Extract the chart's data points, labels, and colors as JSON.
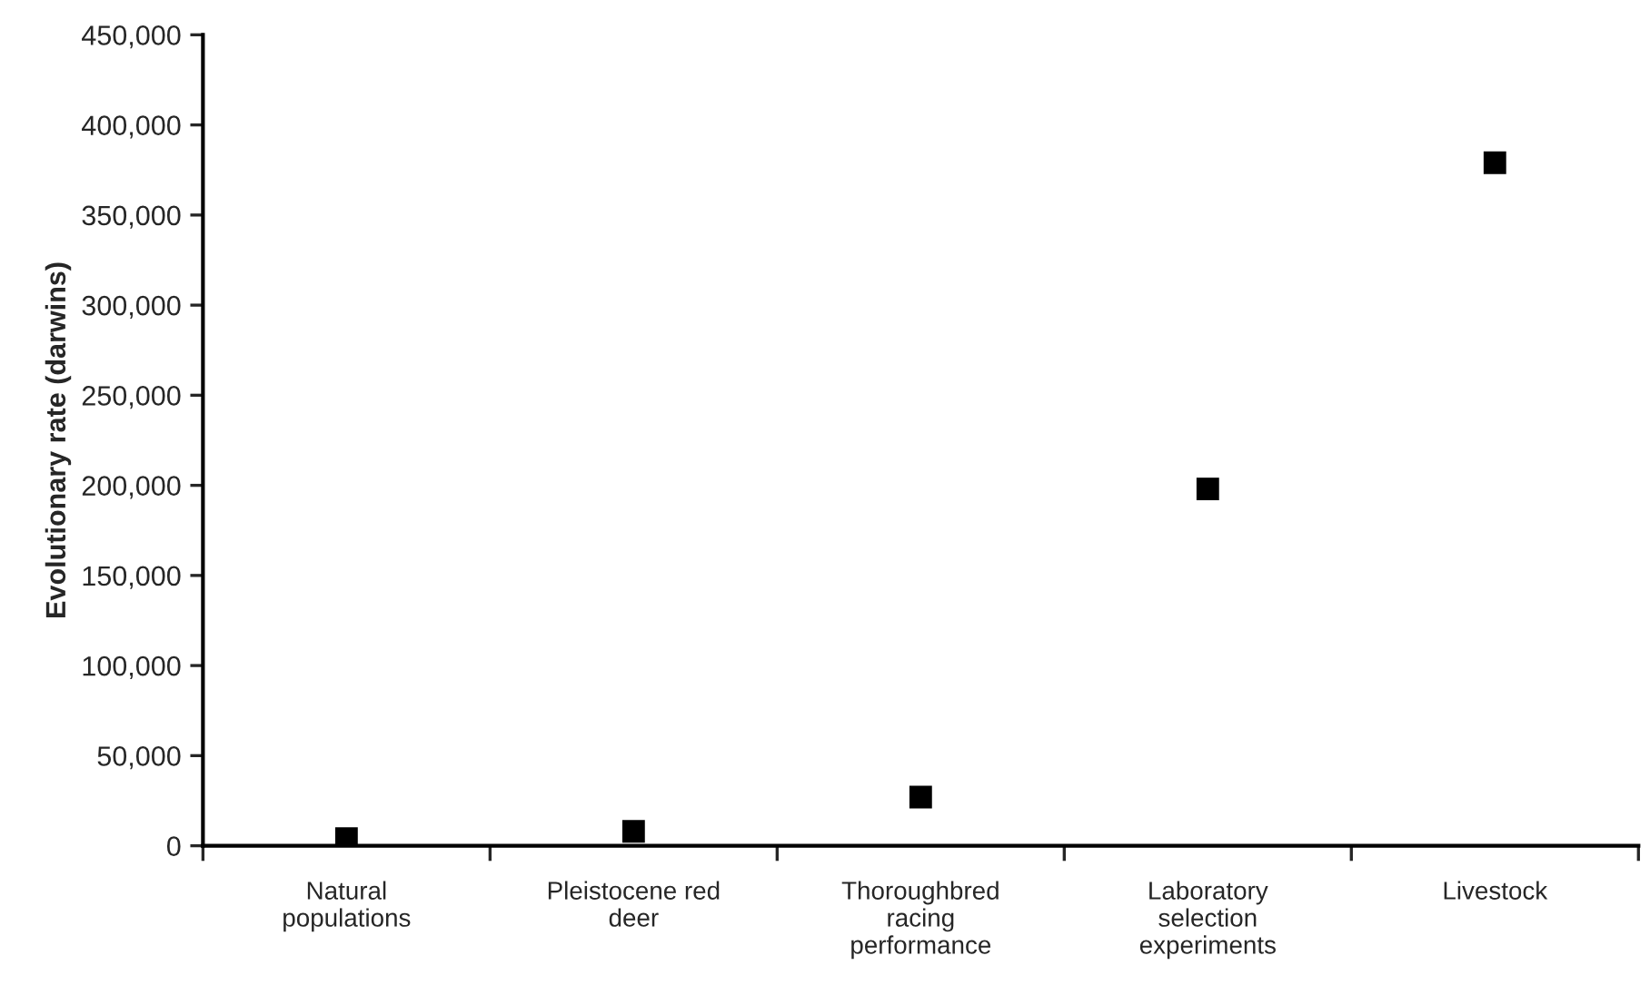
{
  "chart_data": {
    "type": "scatter",
    "ylabel": "Evolutionary rate (darwins)",
    "categories": [
      "Natural\npopulations",
      "Pleistocene red\ndeer",
      "Thoroughbred\nracing\nperformance",
      "Laboratory\nselection\nexperiments",
      "Livestock"
    ],
    "series": [
      {
        "color": "#000000",
        "values": [
          4000,
          8000,
          27000,
          198000,
          379000
        ]
      }
    ],
    "ylim": [
      0,
      450000
    ],
    "yticks": [
      {
        "value": 0,
        "label": "0"
      },
      {
        "value": 50000,
        "label": "50,000"
      },
      {
        "value": 100000,
        "label": "100,000"
      },
      {
        "value": 150000,
        "label": "150,000"
      },
      {
        "value": 200000,
        "label": "200,000"
      },
      {
        "value": 250000,
        "label": "250,000"
      },
      {
        "value": 300000,
        "label": "300,000"
      },
      {
        "value": 350000,
        "label": "350,000"
      },
      {
        "value": 400000,
        "label": "400,000"
      },
      {
        "value": 450000,
        "label": "450,000"
      }
    ],
    "marker": "square",
    "grid": false,
    "legend": false
  }
}
